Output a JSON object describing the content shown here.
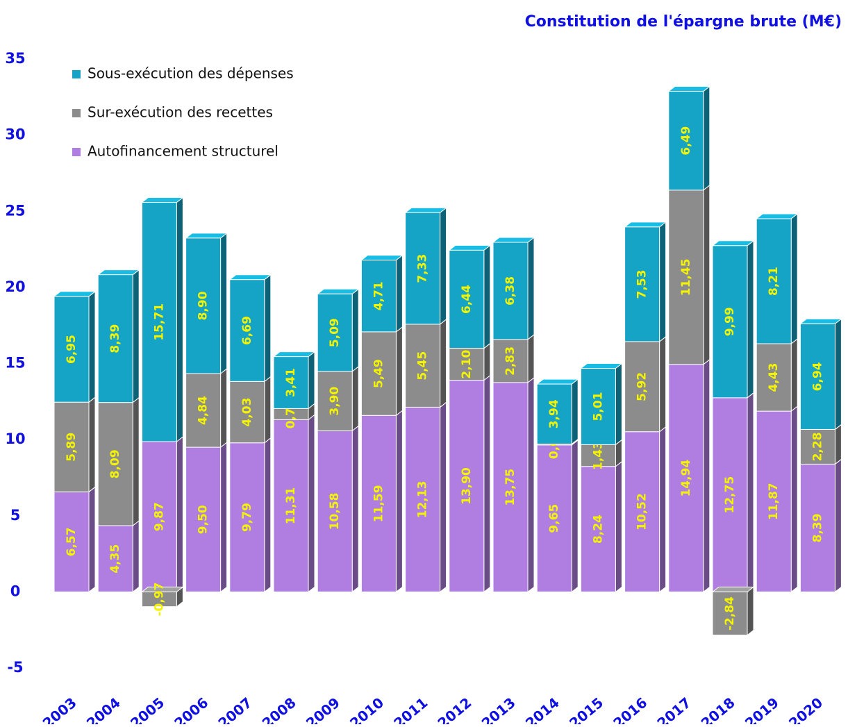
{
  "chart_data": {
    "type": "bar",
    "stacked": true,
    "title": "Constitution de l'épargne brute (M€)",
    "categories": [
      "2003",
      "2004",
      "2005",
      "2006",
      "2007",
      "2008",
      "2009",
      "2010",
      "2011",
      "2012",
      "2013",
      "2014",
      "2015",
      "2016",
      "2017",
      "2018",
      "2019",
      "2020"
    ],
    "series": [
      {
        "name": "Autofinancement structurel",
        "color": "#b07ee0",
        "values": [
          6.57,
          4.35,
          9.87,
          9.5,
          9.79,
          11.31,
          10.58,
          11.59,
          12.13,
          13.9,
          13.75,
          9.65,
          8.24,
          10.52,
          14.94,
          12.75,
          11.87,
          8.39
        ],
        "value_labels": [
          "6,57",
          "4,35",
          "9,87",
          "9,50",
          "9,79",
          "11,31",
          "10,58",
          "11,59",
          "12,13",
          "13,90",
          "13,75",
          "9,65",
          "8,24",
          "10,52",
          "14,94",
          "12,75",
          "11,87",
          "8,39"
        ]
      },
      {
        "name": "Sur-exécution des recettes",
        "color": "#8c8c8c",
        "values": [
          5.89,
          8.09,
          -0.97,
          4.84,
          4.03,
          0.73,
          3.9,
          5.49,
          5.45,
          2.1,
          2.83,
          0.06,
          1.43,
          5.92,
          11.45,
          -2.84,
          4.43,
          2.28
        ],
        "value_labels": [
          "5,89",
          "8,09",
          "-0,97",
          "4,84",
          "4,03",
          "0,73",
          "3,90",
          "5,49",
          "5,45",
          "2,10",
          "2,83",
          "0,06",
          "1,43",
          "5,92",
          "11,45",
          "-2,84",
          "4,43",
          "2,28"
        ]
      },
      {
        "name": "Sous-exécution des dépenses",
        "color": "#16a4c6",
        "values": [
          6.95,
          8.39,
          15.71,
          8.9,
          6.69,
          3.41,
          5.09,
          4.71,
          7.33,
          6.44,
          6.38,
          3.94,
          5.01,
          7.53,
          6.49,
          9.99,
          8.21,
          6.94
        ],
        "value_labels": [
          "6,95",
          "8,39",
          "15,71",
          "8,90",
          "6,69",
          "3,41",
          "5,09",
          "4,71",
          "7,33",
          "6,44",
          "6,38",
          "3,94",
          "5,01",
          "7,53",
          "6,49",
          "9,99",
          "8,21",
          "6,94"
        ]
      }
    ],
    "ylim": [
      -5,
      35
    ],
    "yticks": [
      -5,
      0,
      5,
      10,
      15,
      20,
      25,
      30,
      35
    ],
    "legend": "upper left"
  }
}
